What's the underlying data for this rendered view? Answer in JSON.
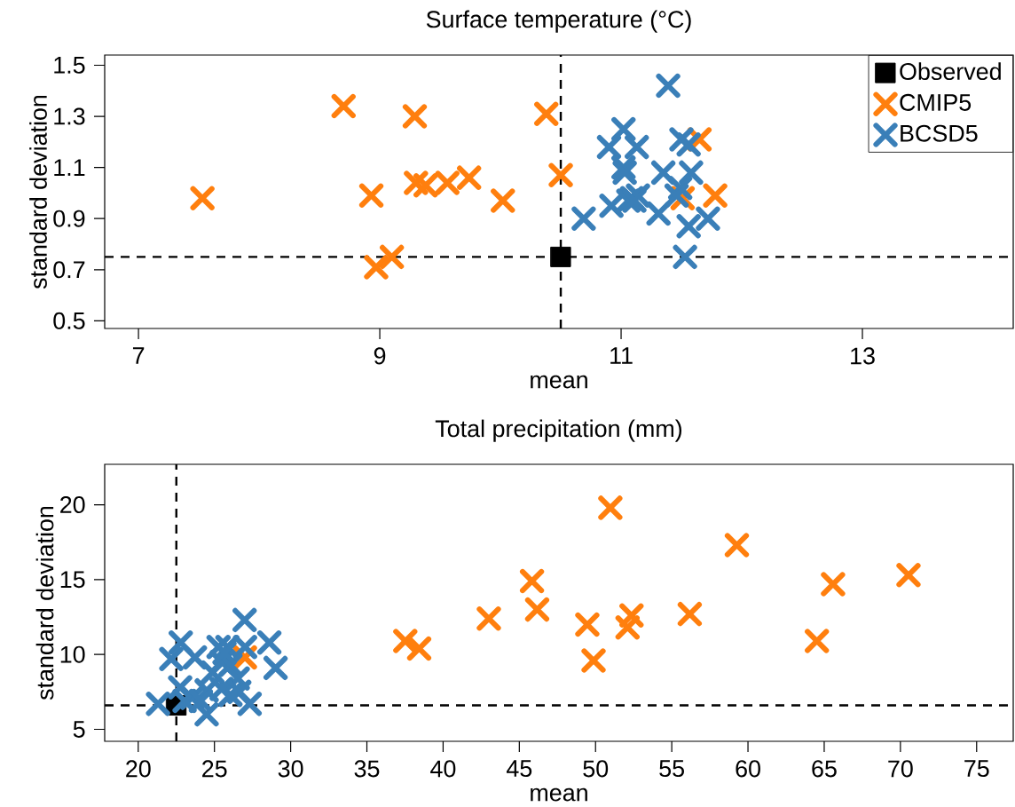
{
  "chart_data": [
    {
      "type": "scatter",
      "title": "Surface temperature (°C)",
      "xlabel": "mean",
      "ylabel": "standard deviation",
      "xlim": [
        6.72,
        14.25
      ],
      "ylim": [
        0.47,
        1.54
      ],
      "xticks": [
        7,
        9,
        11,
        13
      ],
      "yticks": [
        0.5,
        0.7,
        0.9,
        1.1,
        1.3,
        1.5
      ],
      "legend": "top right",
      "ref_lines": [
        {
          "axis": "x",
          "value": 10.5,
          "line_style": "dashed",
          "color": "#000000"
        },
        {
          "axis": "y",
          "value": 0.75,
          "line_style": "dashed",
          "color": "#000000"
        }
      ],
      "series": [
        {
          "name": "Observed",
          "color": "#000000",
          "marker": "square",
          "x": [
            10.5
          ],
          "values": [
            0.75
          ]
        },
        {
          "name": "CMIP5",
          "color": "#ff7f0e",
          "marker": "cross",
          "x": [
            7.53,
            8.7,
            9.29,
            10.38,
            8.93,
            9.3,
            9.38,
            9.56,
            9.74,
            10.02,
            10.5,
            8.97,
            9.1,
            11.65,
            11.78,
            11.51
          ],
          "values": [
            0.98,
            1.34,
            1.3,
            1.31,
            0.99,
            1.04,
            1.03,
            1.04,
            1.06,
            0.97,
            1.07,
            0.71,
            0.75,
            1.21,
            0.99,
            0.98
          ]
        },
        {
          "name": "BCSD5",
          "color": "#3a7fb8",
          "marker": "cross",
          "x": [
            11.39,
            11.02,
            10.9,
            11.13,
            11.5,
            11.56,
            11.02,
            11.03,
            11.35,
            11.58,
            10.92,
            11.09,
            11.14,
            11.06,
            11.49,
            11.46,
            11.31,
            10.69,
            11.56,
            11.72,
            11.53,
            11.11
          ],
          "values": [
            1.42,
            1.25,
            1.18,
            1.18,
            1.21,
            1.19,
            1.1,
            1.08,
            1.08,
            1.08,
            0.95,
            0.98,
            0.99,
            0.97,
            1.02,
            0.99,
            0.92,
            0.9,
            0.87,
            0.9,
            0.75,
            0.97
          ]
        }
      ]
    },
    {
      "type": "scatter",
      "title": "Total precipitation (mm)",
      "xlabel": "mean",
      "ylabel": "standard deviation",
      "xlim": [
        17.8,
        77.4
      ],
      "ylim": [
        4.2,
        22.7
      ],
      "xticks": [
        20,
        25,
        30,
        35,
        40,
        45,
        50,
        55,
        60,
        65,
        70,
        75
      ],
      "yticks": [
        5,
        10,
        15,
        20
      ],
      "ref_lines": [
        {
          "axis": "x",
          "value": 22.5,
          "line_style": "dashed",
          "color": "#000000"
        },
        {
          "axis": "y",
          "value": 6.6,
          "line_style": "dashed",
          "color": "#000000"
        }
      ],
      "series": [
        {
          "color": "#000000",
          "marker": "square",
          "x": [
            22.5
          ],
          "values": [
            6.6
          ]
        },
        {
          "color": "#ff7f0e",
          "marker": "cross",
          "x": [
            50.97,
            59.27,
            70.53,
            65.58,
            45.83,
            46.17,
            43.0,
            56.18,
            49.46,
            52.36,
            52.1,
            49.87,
            64.52,
            37.52,
            38.43,
            27.0
          ],
          "values": [
            19.8,
            17.3,
            15.3,
            14.7,
            14.9,
            13.0,
            12.4,
            12.7,
            12.0,
            12.6,
            11.8,
            9.6,
            10.9,
            10.9,
            10.4,
            9.8
          ]
        },
        {
          "color": "#3a7fb8",
          "marker": "cross",
          "x": [
            26.98,
            28.6,
            29.01,
            22.79,
            22.17,
            23.72,
            25.27,
            25.85,
            27.01,
            24.88,
            25.47,
            26.05,
            26.53,
            22.75,
            23.53,
            24.49,
            25.47,
            26.05,
            26.63,
            27.31,
            21.3,
            24.49,
            23.04,
            24.11,
            25.66
          ],
          "values": [
            12.3,
            10.8,
            9.1,
            10.8,
            9.7,
            9.8,
            10.5,
            10.5,
            10.5,
            8.8,
            9.5,
            9.3,
            8.4,
            7.8,
            7.1,
            7.6,
            7.7,
            7.3,
            7.5,
            6.7,
            6.7,
            6.0,
            6.9,
            6.9,
            10.1
          ]
        }
      ]
    }
  ]
}
